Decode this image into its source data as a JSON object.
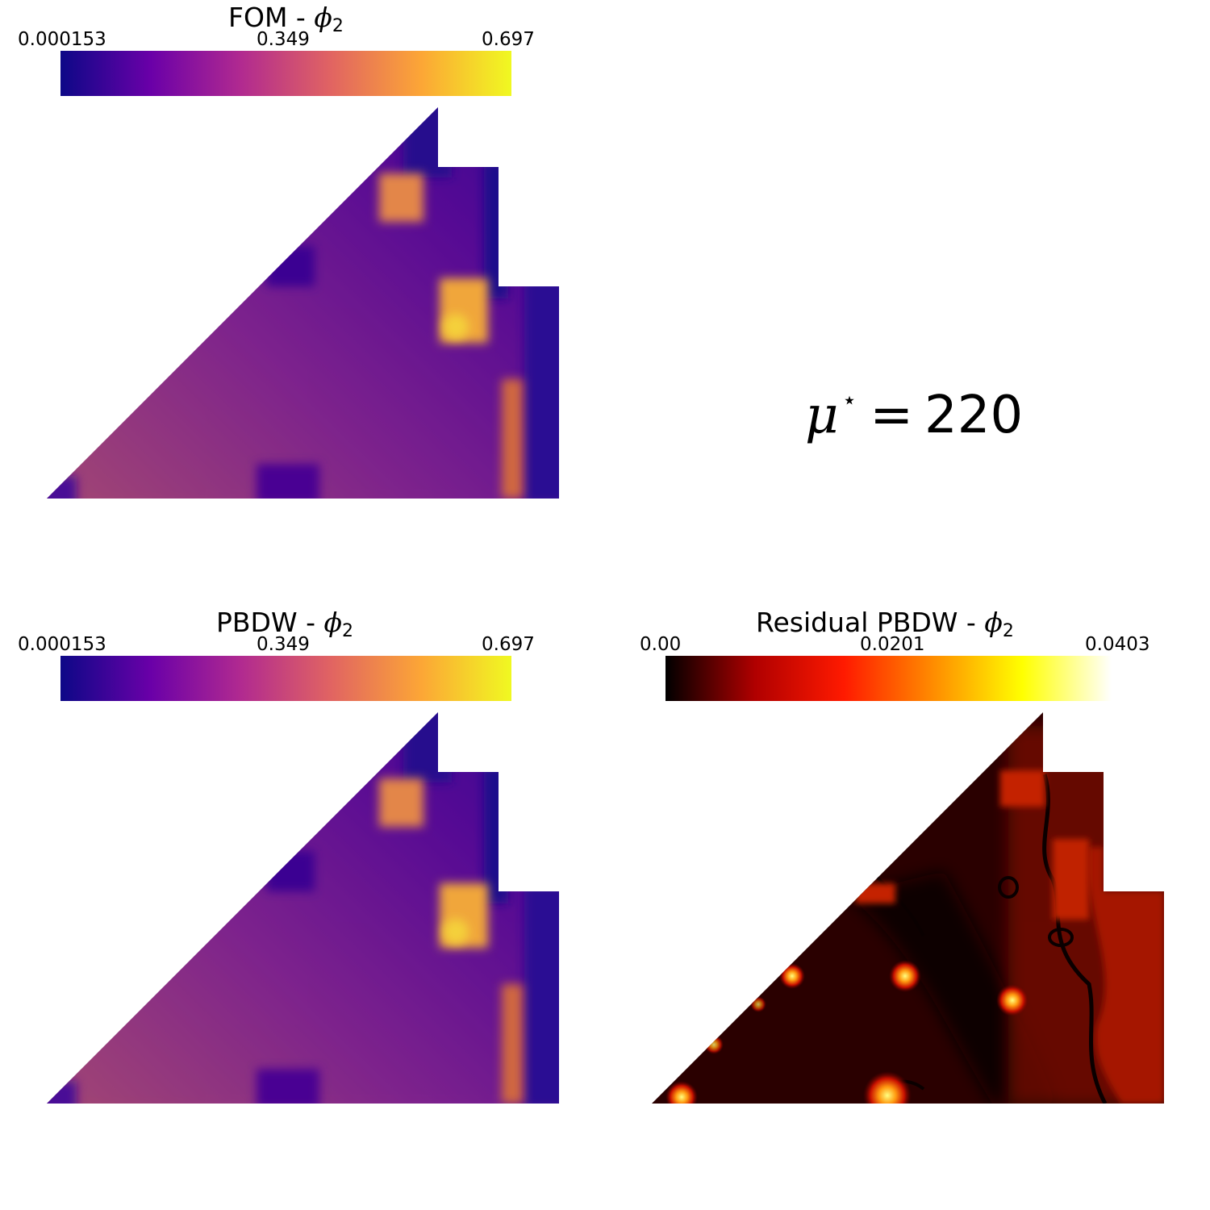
{
  "panels": [
    {
      "title_text": "FOM - ",
      "title_symbol": "ϕ",
      "title_sub": "2",
      "colormap": "plasma",
      "ticks": [
        "0.000153",
        "0.349",
        "0.697"
      ]
    },
    {
      "title_text": "PBDW - ",
      "title_symbol": "ϕ",
      "title_sub": "2",
      "colormap": "plasma",
      "ticks": [
        "0.000153",
        "0.349",
        "0.697"
      ]
    },
    {
      "title_text": "Residual PBDW - ",
      "title_symbol": "ϕ",
      "title_sub": "2",
      "colormap": "hot",
      "ticks": [
        "0.00",
        "0.0201",
        "0.0403"
      ]
    }
  ],
  "parameter": {
    "symbol": "μ",
    "superscript": "⋆",
    "equals": "=",
    "value": "220"
  },
  "colors": {
    "plasma": [
      "#0d0887",
      "#6a00a8",
      "#b12a90",
      "#e16462",
      "#fca636",
      "#f0f921"
    ],
    "hot": [
      "#000000",
      "#b00000",
      "#ff1a00",
      "#ff8c00",
      "#ffff00",
      "#ffffff"
    ]
  },
  "chart_data": [
    {
      "type": "heatmap",
      "title": "FOM - ϕ2",
      "colorbar_range": [
        0.000153,
        0.697
      ],
      "colorbar_ticks": [
        0.000153,
        0.349,
        0.697
      ],
      "colormap": "plasma"
    },
    {
      "type": "heatmap",
      "title": "PBDW - ϕ2",
      "colorbar_range": [
        0.000153,
        0.697
      ],
      "colorbar_ticks": [
        0.000153,
        0.349,
        0.697
      ],
      "colormap": "plasma"
    },
    {
      "type": "heatmap",
      "title": "Residual PBDW - ϕ2",
      "colorbar_range": [
        0.0,
        0.0403
      ],
      "colorbar_ticks": [
        0.0,
        0.0201,
        0.0403
      ],
      "colormap": "hot"
    }
  ]
}
